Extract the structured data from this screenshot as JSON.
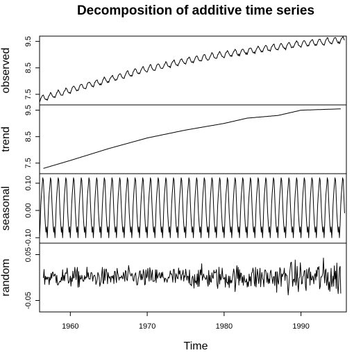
{
  "title": "Decomposition of additive time series",
  "xlabel": "Time",
  "x_ticks": [
    "1960",
    "1970",
    "1980",
    "1990"
  ],
  "chart_data": {
    "type": "line",
    "title": "Decomposition of additive time series",
    "xlabel": "Time",
    "xlim": [
      1956,
      1995.9
    ],
    "x_tick_values": [
      1960,
      1970,
      1980,
      1990
    ],
    "frequency": 12,
    "panels": [
      {
        "name": "observed",
        "ylabel": "observed",
        "ylim": [
          7.1,
          9.7
        ],
        "y_ticks": [
          7.5,
          8.5,
          9.5
        ],
        "y_tick_labels": [
          "7.5",
          "8.5",
          "9.5"
        ],
        "series": {
          "start": 1956.0,
          "end": 1995.67,
          "annual_points": [
            [
              1956,
              7.3
            ],
            [
              1960,
              7.65
            ],
            [
              1965,
              8.05
            ],
            [
              1970,
              8.45
            ],
            [
              1975,
              8.75
            ],
            [
              1980,
              9.0
            ],
            [
              1985,
              9.2
            ],
            [
              1990,
              9.4
            ],
            [
              1995.67,
              9.55
            ]
          ],
          "seasonal_amplitude": 0.13
        }
      },
      {
        "name": "trend",
        "ylabel": "trend",
        "ylim": [
          7.1,
          9.7
        ],
        "y_ticks": [
          7.5,
          8.5,
          9.5
        ],
        "y_tick_labels": [
          "7.5",
          "8.5",
          "9.5"
        ],
        "series": {
          "start": 1956.5,
          "end": 1995.17,
          "annual_points": [
            [
              1956.5,
              7.3
            ],
            [
              1960,
              7.6
            ],
            [
              1965,
              8.05
            ],
            [
              1970,
              8.45
            ],
            [
              1975,
              8.75
            ],
            [
              1980,
              9.0
            ],
            [
              1983,
              9.2
            ],
            [
              1987,
              9.3
            ],
            [
              1990,
              9.5
            ],
            [
              1995.17,
              9.55
            ]
          ]
        }
      },
      {
        "name": "seasonal",
        "ylabel": "seasonal",
        "ylim": [
          -0.12,
          0.135
        ],
        "y_ticks": [
          -0.1,
          0.0,
          0.1
        ],
        "y_tick_labels": [
          "-0.10",
          "0.00",
          "0.10"
        ],
        "series": {
          "start": 1956.0,
          "end": 1995.67,
          "monthly_pattern": [
            -0.1,
            -0.05,
            0.02,
            0.06,
            0.09,
            0.12,
            0.11,
            0.05,
            -0.01,
            -0.05,
            -0.08,
            -0.06
          ]
        }
      },
      {
        "name": "random",
        "ylabel": "random",
        "ylim": [
          -0.075,
          0.075
        ],
        "y_ticks": [
          -0.05,
          0.05
        ],
        "y_tick_labels": [
          "-0.05",
          "0.05"
        ],
        "series": {
          "start": 1956.5,
          "end": 1995.17,
          "noise_sd_early": 0.015,
          "noise_sd_late": 0.03
        }
      }
    ]
  }
}
